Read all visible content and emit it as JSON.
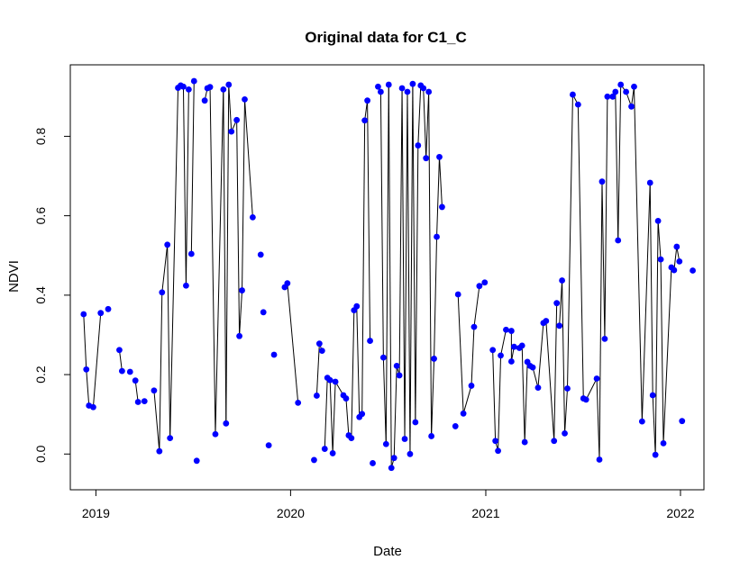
{
  "chart_data": {
    "type": "scatter",
    "title": "Original data for C1_C",
    "xlabel": "Date",
    "ylabel": "NDVI",
    "x_ticks": [
      "2019",
      "2020",
      "2021",
      "2022"
    ],
    "y_ticks": [
      "0.0",
      "0.2",
      "0.4",
      "0.6",
      "0.8"
    ],
    "xlim": [
      "2018-11-14",
      "2022-02-14"
    ],
    "ylim": [
      -0.09,
      0.98
    ],
    "grid": false,
    "legend": "none",
    "colors": {
      "points": "#0000ff",
      "line": "#000000",
      "axis": "#000000"
    },
    "series": [
      {
        "points": [
          [
            "2018-12-09",
            0.352
          ],
          [
            "2018-12-14",
            0.213
          ],
          [
            "2018-12-19",
            0.122
          ],
          [
            "2018-12-27",
            0.118
          ],
          [
            "2019-01-10",
            0.355
          ],
          [
            "2019-01-24",
            0.365
          ],
          [
            "2019-02-14",
            0.262
          ],
          [
            "2019-02-19",
            0.209
          ],
          [
            "2019-03-06",
            0.207
          ],
          [
            "2019-03-16",
            0.185
          ],
          [
            "2019-03-21",
            0.131
          ],
          [
            "2019-04-02",
            0.133
          ],
          [
            "2019-04-20",
            0.16
          ],
          [
            "2019-04-30",
            0.007
          ],
          [
            "2019-05-05",
            0.407
          ],
          [
            "2019-05-15",
            0.527
          ],
          [
            "2019-05-20",
            0.04
          ],
          [
            "2019-06-04",
            0.922
          ],
          [
            "2019-06-09",
            0.928
          ],
          [
            "2019-06-14",
            0.925
          ],
          [
            "2019-06-19",
            0.424
          ],
          [
            "2019-06-24",
            0.918
          ],
          [
            "2019-06-29",
            0.504
          ],
          [
            "2019-07-04",
            0.939
          ],
          [
            "2019-07-09",
            -0.017
          ],
          [
            "2019-07-24",
            0.89
          ],
          [
            "2019-07-29",
            0.921
          ],
          [
            "2019-08-03",
            0.924
          ],
          [
            "2019-08-13",
            0.05
          ],
          [
            "2019-08-28",
            0.918
          ],
          [
            "2019-09-02",
            0.077
          ],
          [
            "2019-09-07",
            0.93
          ],
          [
            "2019-09-12",
            0.812
          ],
          [
            "2019-09-22",
            0.841
          ],
          [
            "2019-09-27",
            0.297
          ],
          [
            "2019-10-02",
            0.412
          ],
          [
            "2019-10-07",
            0.893
          ],
          [
            "2019-10-22",
            0.596
          ],
          [
            "2019-11-06",
            0.502
          ],
          [
            "2019-11-11",
            0.357
          ],
          [
            "2019-11-21",
            0.022
          ],
          [
            "2019-12-01",
            0.25
          ],
          [
            "2019-12-21",
            0.42
          ],
          [
            "2019-12-26",
            0.43
          ],
          [
            "2020-01-15",
            0.129
          ],
          [
            "2020-02-14",
            -0.015
          ],
          [
            "2020-02-19",
            0.147
          ],
          [
            "2020-02-24",
            0.278
          ],
          [
            "2020-02-29",
            0.26
          ],
          [
            "2020-03-05",
            0.013
          ],
          [
            "2020-03-10",
            0.192
          ],
          [
            "2020-03-15",
            0.186
          ],
          [
            "2020-03-20",
            0.002
          ],
          [
            "2020-03-25",
            0.182
          ],
          [
            "2020-04-09",
            0.148
          ],
          [
            "2020-04-14",
            0.14
          ],
          [
            "2020-04-19",
            0.047
          ],
          [
            "2020-04-24",
            0.04
          ],
          [
            "2020-04-29",
            0.362
          ],
          [
            "2020-05-04",
            0.372
          ],
          [
            "2020-05-09",
            0.093
          ],
          [
            "2020-05-14",
            0.101
          ],
          [
            "2020-05-19",
            0.84
          ],
          [
            "2020-05-24",
            0.89
          ],
          [
            "2020-05-29",
            0.285
          ],
          [
            "2020-06-03",
            -0.023
          ],
          [
            "2020-06-13",
            0.925
          ],
          [
            "2020-06-18",
            0.912
          ],
          [
            "2020-06-23",
            0.243
          ],
          [
            "2020-06-28",
            0.025
          ],
          [
            "2020-07-03",
            0.93
          ],
          [
            "2020-07-08",
            -0.035
          ],
          [
            "2020-07-13",
            -0.01
          ],
          [
            "2020-07-18",
            0.222
          ],
          [
            "2020-07-23",
            0.198
          ],
          [
            "2020-07-28",
            0.921
          ],
          [
            "2020-08-02",
            0.038
          ],
          [
            "2020-08-07",
            0.912
          ],
          [
            "2020-08-12",
            0.0
          ],
          [
            "2020-08-17",
            0.932
          ],
          [
            "2020-08-22",
            0.08
          ],
          [
            "2020-08-27",
            0.777
          ],
          [
            "2020-09-01",
            0.928
          ],
          [
            "2020-09-06",
            0.921
          ],
          [
            "2020-09-11",
            0.745
          ],
          [
            "2020-09-16",
            0.912
          ],
          [
            "2020-09-21",
            0.045
          ],
          [
            "2020-09-26",
            0.24
          ],
          [
            "2020-10-01",
            0.547
          ],
          [
            "2020-10-06",
            0.748
          ],
          [
            "2020-10-11",
            0.622
          ],
          [
            "2020-11-05",
            0.07
          ],
          [
            "2020-11-10",
            0.402
          ],
          [
            "2020-11-20",
            0.102
          ],
          [
            "2020-12-05",
            0.172
          ],
          [
            "2020-12-10",
            0.32
          ],
          [
            "2020-12-20",
            0.423
          ],
          [
            "2020-12-30",
            0.432
          ],
          [
            "2021-01-14",
            0.262
          ],
          [
            "2021-01-19",
            0.033
          ],
          [
            "2021-01-24",
            0.008
          ],
          [
            "2021-01-29",
            0.248
          ],
          [
            "2021-02-08",
            0.313
          ],
          [
            "2021-02-18",
            0.31
          ],
          [
            "2021-02-18",
            0.233
          ],
          [
            "2021-02-23",
            0.27
          ],
          [
            "2021-03-05",
            0.267
          ],
          [
            "2021-03-10",
            0.273
          ],
          [
            "2021-03-15",
            0.03
          ],
          [
            "2021-03-20",
            0.232
          ],
          [
            "2021-03-25",
            0.222
          ],
          [
            "2021-03-30",
            0.218
          ],
          [
            "2021-04-09",
            0.167
          ],
          [
            "2021-04-19",
            0.33
          ],
          [
            "2021-04-24",
            0.335
          ],
          [
            "2021-05-09",
            0.033
          ],
          [
            "2021-05-14",
            0.38
          ],
          [
            "2021-05-19",
            0.323
          ],
          [
            "2021-05-24",
            0.437
          ],
          [
            "2021-05-29",
            0.052
          ],
          [
            "2021-06-03",
            0.165
          ],
          [
            "2021-06-13",
            0.905
          ],
          [
            "2021-06-23",
            0.88
          ],
          [
            "2021-07-03",
            0.14
          ],
          [
            "2021-07-08",
            0.137
          ],
          [
            "2021-07-28",
            0.19
          ],
          [
            "2021-08-02",
            -0.014
          ],
          [
            "2021-08-07",
            0.686
          ],
          [
            "2021-08-12",
            0.29
          ],
          [
            "2021-08-17",
            0.9
          ],
          [
            "2021-08-27",
            0.9
          ],
          [
            "2021-09-01",
            0.912
          ],
          [
            "2021-09-06",
            0.538
          ],
          [
            "2021-09-11",
            0.93
          ],
          [
            "2021-09-21",
            0.912
          ],
          [
            "2021-10-01",
            0.875
          ],
          [
            "2021-10-06",
            0.925
          ],
          [
            "2021-10-21",
            0.082
          ],
          [
            "2021-11-05",
            0.683
          ],
          [
            "2021-11-10",
            0.148
          ],
          [
            "2021-11-15",
            -0.002
          ],
          [
            "2021-11-20",
            0.587
          ],
          [
            "2021-11-25",
            0.49
          ],
          [
            "2021-11-30",
            0.027
          ],
          [
            "2021-12-15",
            0.47
          ],
          [
            "2021-12-20",
            0.463
          ],
          [
            "2021-12-25",
            0.522
          ],
          [
            "2021-12-30",
            0.485
          ],
          [
            "2022-01-04",
            0.083
          ],
          [
            "2022-01-24",
            0.462
          ]
        ],
        "connected_pairs": [
          [
            0,
            1
          ],
          [
            1,
            2
          ],
          [
            2,
            3
          ],
          [
            3,
            4
          ],
          [
            6,
            7
          ],
          [
            9,
            10
          ],
          [
            12,
            13
          ],
          [
            13,
            14
          ],
          [
            14,
            15
          ],
          [
            15,
            16
          ],
          [
            16,
            17
          ],
          [
            17,
            18
          ],
          [
            18,
            19
          ],
          [
            19,
            20
          ],
          [
            20,
            21
          ],
          [
            22,
            23
          ],
          [
            25,
            26
          ],
          [
            26,
            27
          ],
          [
            27,
            28
          ],
          [
            28,
            29
          ],
          [
            29,
            30
          ],
          [
            30,
            31
          ],
          [
            31,
            32
          ],
          [
            32,
            33
          ],
          [
            33,
            34
          ],
          [
            34,
            35
          ],
          [
            35,
            36
          ],
          [
            36,
            37
          ],
          [
            42,
            43
          ],
          [
            43,
            44
          ],
          [
            46,
            47
          ],
          [
            47,
            48
          ],
          [
            49,
            50
          ],
          [
            50,
            51
          ],
          [
            51,
            52
          ],
          [
            52,
            53
          ],
          [
            53,
            54
          ],
          [
            54,
            55
          ],
          [
            55,
            56
          ],
          [
            56,
            57
          ],
          [
            57,
            58
          ],
          [
            58,
            59
          ],
          [
            59,
            60
          ],
          [
            60,
            61
          ],
          [
            61,
            62
          ],
          [
            62,
            63
          ],
          [
            63,
            64
          ],
          [
            66,
            67
          ],
          [
            67,
            68
          ],
          [
            68,
            69
          ],
          [
            69,
            70
          ],
          [
            70,
            71
          ],
          [
            71,
            72
          ],
          [
            72,
            73
          ],
          [
            73,
            74
          ],
          [
            74,
            75
          ],
          [
            75,
            76
          ],
          [
            76,
            77
          ],
          [
            77,
            78
          ],
          [
            78,
            79
          ],
          [
            79,
            80
          ],
          [
            80,
            81
          ],
          [
            81,
            82
          ],
          [
            82,
            83
          ],
          [
            83,
            84
          ],
          [
            84,
            85
          ],
          [
            85,
            86
          ],
          [
            86,
            87
          ],
          [
            87,
            88
          ],
          [
            88,
            89
          ],
          [
            89,
            90
          ],
          [
            92,
            93
          ],
          [
            93,
            94
          ],
          [
            94,
            95
          ],
          [
            95,
            96
          ],
          [
            96,
            97
          ],
          [
            98,
            99
          ],
          [
            99,
            100
          ],
          [
            100,
            101
          ],
          [
            101,
            102
          ],
          [
            102,
            103
          ],
          [
            103,
            104
          ],
          [
            104,
            105
          ],
          [
            105,
            106
          ],
          [
            106,
            107
          ],
          [
            107,
            108
          ],
          [
            108,
            109
          ],
          [
            109,
            110
          ],
          [
            110,
            111
          ],
          [
            111,
            112
          ],
          [
            112,
            113
          ],
          [
            113,
            114
          ],
          [
            114,
            115
          ],
          [
            115,
            116
          ],
          [
            117,
            118
          ],
          [
            118,
            119
          ],
          [
            119,
            120
          ],
          [
            120,
            121
          ],
          [
            121,
            122
          ],
          [
            122,
            123
          ],
          [
            123,
            124
          ],
          [
            124,
            125
          ],
          [
            125,
            126
          ],
          [
            126,
            127
          ],
          [
            127,
            128
          ],
          [
            128,
            129
          ],
          [
            129,
            130
          ],
          [
            130,
            131
          ],
          [
            131,
            132
          ],
          [
            132,
            133
          ],
          [
            133,
            134
          ],
          [
            134,
            135
          ],
          [
            135,
            136
          ],
          [
            136,
            137
          ],
          [
            137,
            138
          ],
          [
            138,
            139
          ],
          [
            139,
            140
          ],
          [
            140,
            141
          ],
          [
            141,
            142
          ],
          [
            142,
            143
          ],
          [
            143,
            144
          ],
          [
            144,
            145
          ],
          [
            145,
            146
          ],
          [
            146,
            147
          ]
        ]
      }
    ]
  }
}
